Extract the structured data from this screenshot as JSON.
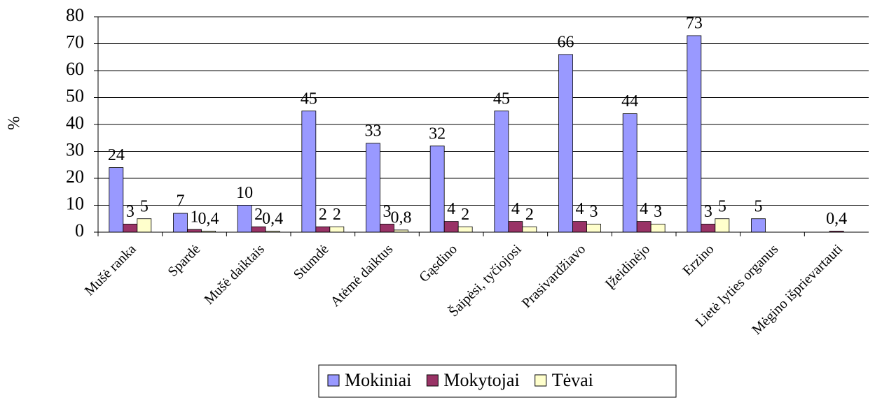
{
  "chart_data": {
    "type": "bar",
    "y_label": "%",
    "categories": [
      "Mušė ranka",
      "Spardė",
      "Mušė daiktais",
      "Stumdė",
      "Atėmė daiktus",
      "Gąsdino",
      "Šaipėsi, tyčiojosi",
      "Prasivardžiavo",
      "Įžeidinėjo",
      "Erzino",
      "Lietė lyties organus",
      "Mėgino išprievartauti"
    ],
    "series": [
      {
        "name": "Mokiniai",
        "color": "#9999ff",
        "values": [
          24,
          7,
          10,
          45,
          33,
          32,
          45,
          66,
          44,
          73,
          5,
          null
        ]
      },
      {
        "name": "Mokytojai",
        "color": "#993366",
        "values": [
          3,
          1,
          2,
          2,
          3,
          4,
          4,
          4,
          4,
          3,
          null,
          0.4
        ],
        "value_labels": [
          "3",
          "1",
          "2",
          "2",
          "3",
          "4",
          "4",
          "4",
          "4",
          "3",
          null,
          "0,4"
        ]
      },
      {
        "name": "Tėvai",
        "color": "#ffffcc",
        "values": [
          5,
          0.4,
          0.4,
          2,
          0.8,
          2,
          2,
          3,
          3,
          5,
          null,
          null
        ],
        "value_labels": [
          "5",
          "0,4",
          "0,4",
          "2",
          "0,8",
          "2",
          "2",
          "3",
          "3",
          "5",
          null,
          null
        ]
      }
    ],
    "ylim": [
      0,
      80
    ],
    "yticks": [
      0,
      10,
      20,
      30,
      40,
      50,
      60,
      70,
      80
    ],
    "grid": true,
    "legend": "bottom"
  }
}
